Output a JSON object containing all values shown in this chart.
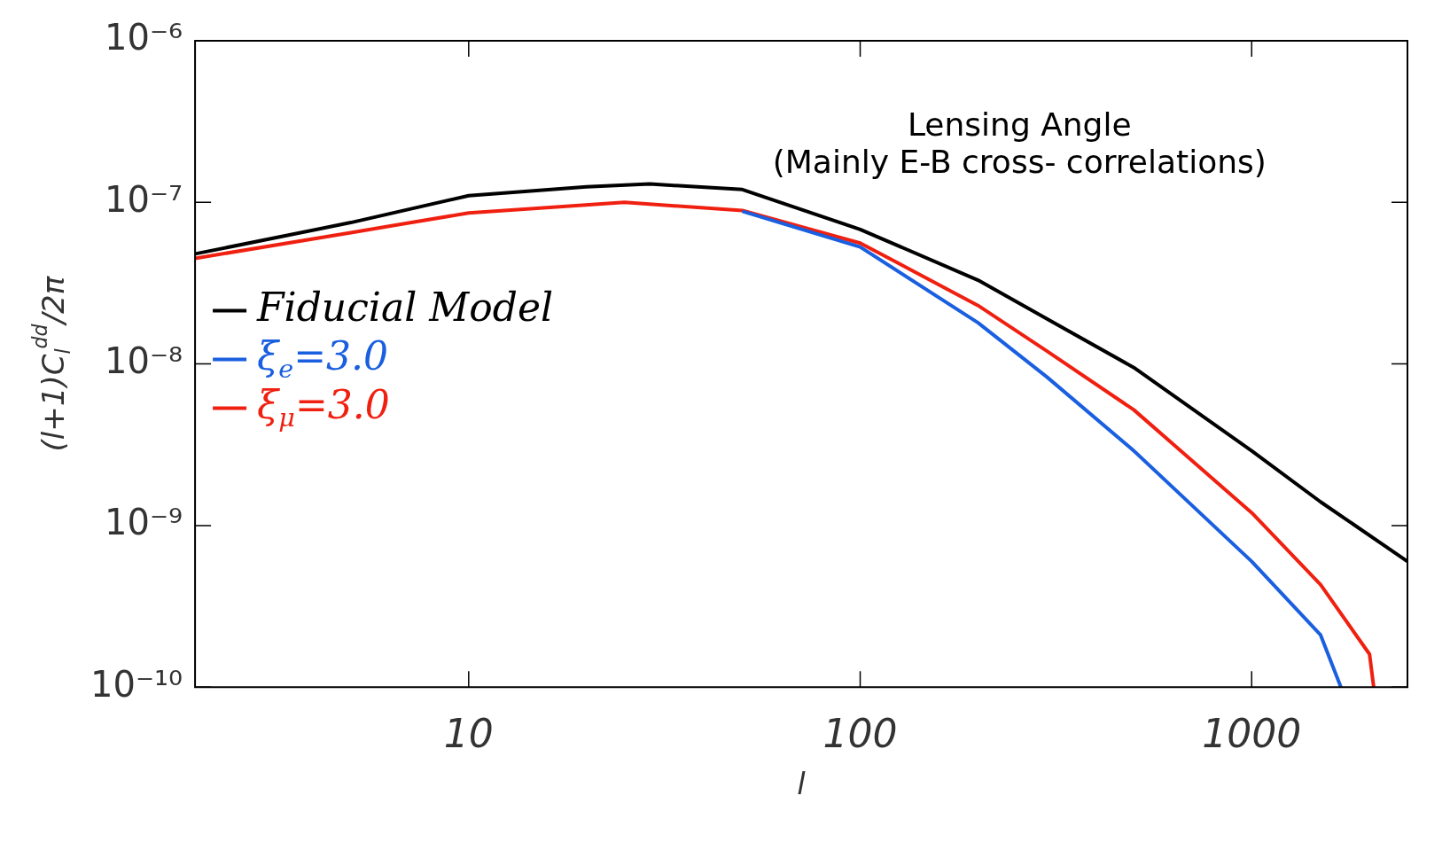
{
  "chart_data": {
    "type": "line",
    "xlabel": "l",
    "ylabel": "(l+1)C$_{l}$$^{dd}$/2π",
    "log": "xy",
    "xlim": [
      2,
      2500
    ],
    "ylim": [
      1e-10,
      1e-06
    ],
    "xticks": [
      10,
      100,
      1000
    ],
    "yticks": [
      {
        "value": 1e-10,
        "label": "10⁻¹⁰"
      },
      {
        "value": 1e-09,
        "label": "10⁻⁹"
      },
      {
        "value": 1e-08,
        "label": "10⁻⁸"
      },
      {
        "value": 1e-07,
        "label": "10⁻⁷"
      },
      {
        "value": 1e-06,
        "label": "10⁻⁶"
      }
    ],
    "legend": "left",
    "grid": false,
    "line_style": "solid",
    "marker": "none",
    "annotations": [
      "Lensing Angle",
      "(Mainly E-B cross- correlations)"
    ],
    "series": [
      {
        "name": "Fiducial Model",
        "color": "#000000",
        "x": [
          2,
          5,
          10,
          20,
          29,
          50,
          100,
          200,
          300,
          500,
          1000,
          1500,
          2500
        ],
        "values": [
          4.8e-08,
          7.5e-08,
          1.1e-07,
          1.25e-07,
          1.3e-07,
          1.2e-07,
          6.8e-08,
          3.3e-08,
          1.9e-08,
          9.5e-09,
          2.9e-09,
          1.4e-09,
          6e-10
        ]
      },
      {
        "name": "ξ$_{e}$=3.0",
        "color": "#1a5fe0",
        "x": [
          50,
          100,
          200,
          300,
          500,
          1000,
          1500,
          1690
        ],
        "values": [
          8.8e-08,
          5.3e-08,
          1.8e-08,
          8.3e-09,
          2.9e-09,
          6e-10,
          2.1e-10,
          1e-10
        ]
      },
      {
        "name": "ξ$_{μ}$=3.0",
        "color": "#f02010",
        "x": [
          2,
          5,
          10,
          25,
          50,
          100,
          200,
          300,
          500,
          1000,
          1500,
          2000,
          2050
        ],
        "values": [
          4.5e-08,
          6.5e-08,
          8.6e-08,
          1e-07,
          8.9e-08,
          5.6e-08,
          2.3e-08,
          1.2e-08,
          5.2e-09,
          1.2e-09,
          4.3e-10,
          1.6e-10,
          1e-10
        ]
      }
    ]
  }
}
